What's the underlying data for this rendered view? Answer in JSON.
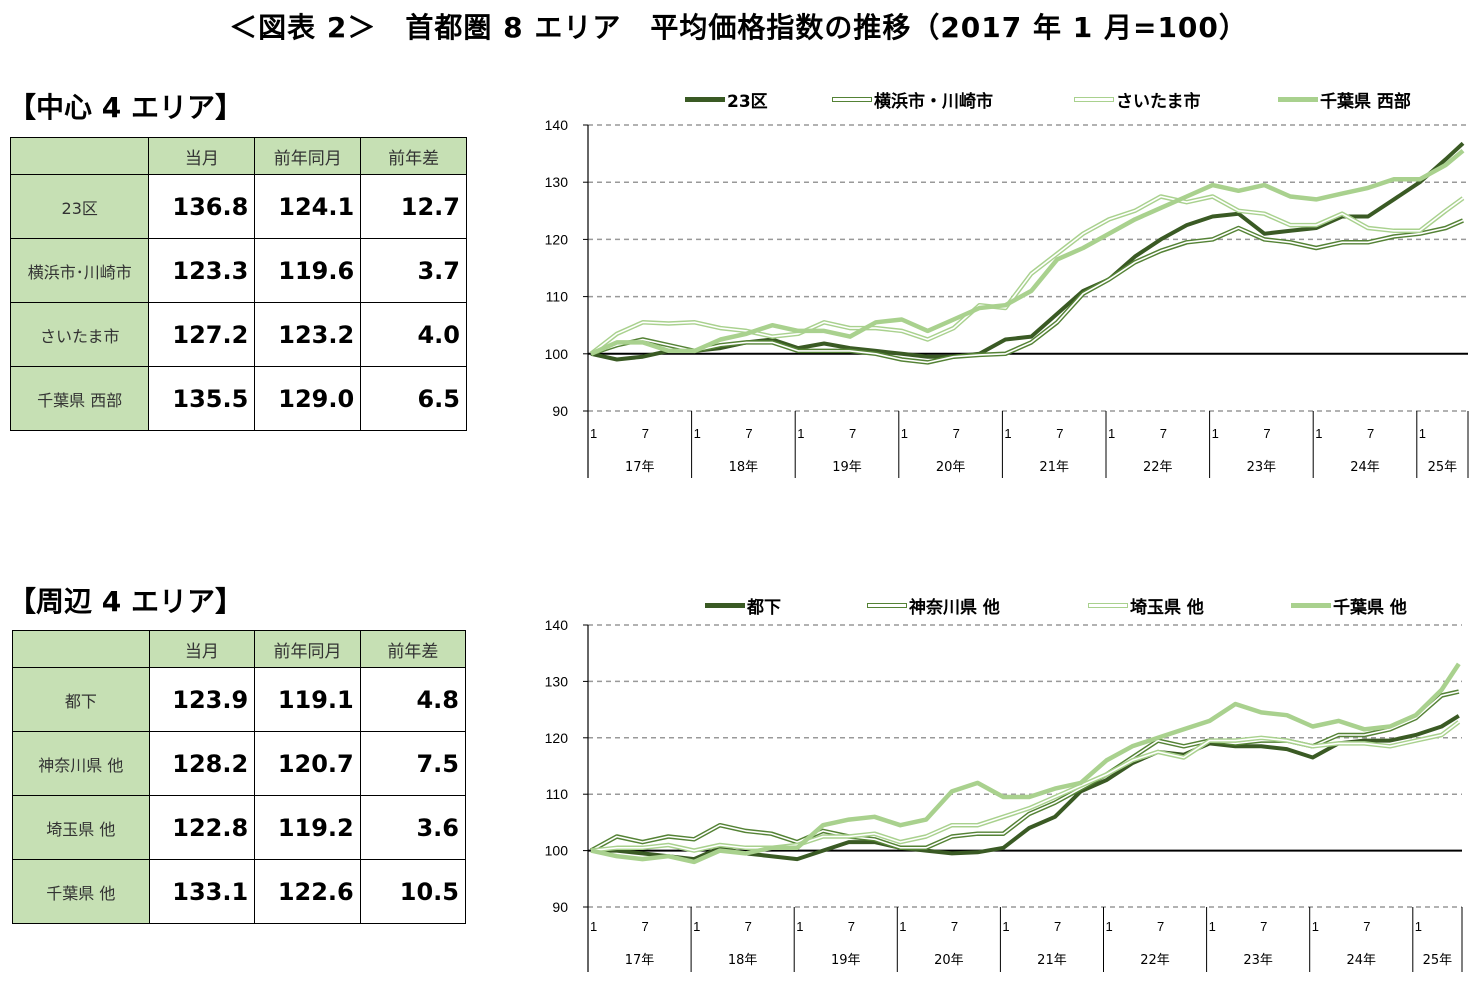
{
  "title": "＜図表 2＞　首都圏 8 エリア　平均価格指数の推移（2017 年 1 月=100）",
  "sections": [
    {
      "heading": "【中心 4 エリア】",
      "table": {
        "headers": [
          "",
          "当月",
          "前年同月",
          "前年差"
        ],
        "rows": [
          [
            "23区",
            "136.8",
            "124.1",
            "12.7"
          ],
          [
            "横浜市･川崎市",
            "123.3",
            "119.6",
            "3.7"
          ],
          [
            "さいたま市",
            "127.2",
            "123.2",
            "4.0"
          ],
          [
            "千葉県 西部",
            "135.5",
            "129.0",
            "6.5"
          ]
        ]
      }
    },
    {
      "heading": "【周辺 4 エリア】",
      "table": {
        "headers": [
          "",
          "当月",
          "前年同月",
          "前年差"
        ],
        "rows": [
          [
            "都下",
            "123.9",
            "119.1",
            "4.8"
          ],
          [
            "神奈川県 他",
            "128.2",
            "120.7",
            "7.5"
          ],
          [
            "埼玉県 他",
            "122.8",
            "119.2",
            "3.6"
          ],
          [
            "千葉県 他",
            "133.1",
            "122.6",
            "10.5"
          ]
        ]
      }
    }
  ],
  "chart_data": [
    {
      "type": "line",
      "ylim": [
        90,
        140
      ],
      "y_ticks": [
        "90",
        "100",
        "110",
        "120",
        "130",
        "140"
      ],
      "grid": "dashed horizontal",
      "reference_line": 100,
      "legend_position": "top",
      "x_month_labels": [
        "1",
        "7"
      ],
      "x_year_labels": [
        "17年",
        "18年",
        "19年",
        "20年",
        "21年",
        "22年",
        "23年",
        "24年",
        "25年"
      ],
      "x": [
        "2017-01",
        "2017-04",
        "2017-07",
        "2017-10",
        "2018-01",
        "2018-04",
        "2018-07",
        "2018-10",
        "2019-01",
        "2019-04",
        "2019-07",
        "2019-10",
        "2020-01",
        "2020-04",
        "2020-07",
        "2020-10",
        "2021-01",
        "2021-04",
        "2021-07",
        "2021-10",
        "2022-01",
        "2022-04",
        "2022-07",
        "2022-10",
        "2023-01",
        "2023-04",
        "2023-07",
        "2023-10",
        "2024-01",
        "2024-04",
        "2024-07",
        "2024-10",
        "2025-01",
        "2025-04",
        "2025-06"
      ],
      "series": [
        {
          "name": "23区",
          "color": "#3a5a24",
          "style": "solid-dark",
          "values": [
            100,
            99,
            99.5,
            100.5,
            100.5,
            101,
            102,
            102.5,
            101,
            101.8,
            101,
            100.5,
            100,
            99.5,
            99.5,
            100,
            102.5,
            103,
            107,
            111,
            113,
            117,
            120,
            122.5,
            124,
            124.5,
            121,
            121.5,
            122,
            124,
            124,
            127,
            130,
            134,
            136.8
          ]
        },
        {
          "name": "横浜市・川崎市",
          "color": "#548235",
          "style": "double",
          "values": [
            100,
            101.5,
            102.5,
            101.5,
            100.5,
            101.5,
            102,
            102,
            100.5,
            100.5,
            100.5,
            100,
            99,
            98.5,
            99.5,
            99.8,
            100,
            102,
            105.5,
            110.5,
            113,
            116,
            118,
            119.5,
            120,
            122,
            120,
            119.5,
            118.5,
            119.5,
            119.5,
            120.5,
            121,
            122,
            123.3
          ]
        },
        {
          "name": "さいたま市",
          "color": "#a9d18e",
          "style": "double",
          "values": [
            100,
            103.5,
            105.5,
            105.3,
            105.5,
            104.5,
            104,
            103,
            103.5,
            105.5,
            104.5,
            104.5,
            104,
            102.5,
            104.5,
            108.5,
            108,
            114,
            117.5,
            121,
            123.5,
            125,
            127.5,
            126.5,
            127.5,
            125,
            124.5,
            122.5,
            122.5,
            124.5,
            122,
            121.5,
            121.5,
            125,
            127.2
          ]
        },
        {
          "name": "千葉県 西部",
          "color": "#a9d18e",
          "style": "solid-light",
          "values": [
            100,
            102,
            102,
            100.5,
            100.5,
            102.5,
            103.5,
            105,
            104,
            104,
            103,
            105.5,
            106,
            104,
            106,
            108,
            108.5,
            111,
            116.5,
            118.5,
            121,
            123.5,
            125.5,
            127.5,
            129.5,
            128.5,
            129.5,
            127.5,
            127,
            128,
            129,
            130.5,
            130.5,
            133,
            135.5
          ]
        }
      ]
    },
    {
      "type": "line",
      "ylim": [
        90,
        140
      ],
      "y_ticks": [
        "90",
        "100",
        "110",
        "120",
        "130",
        "140"
      ],
      "grid": "dashed horizontal",
      "reference_line": 100,
      "legend_position": "top",
      "x_month_labels": [
        "1",
        "7"
      ],
      "x_year_labels": [
        "17年",
        "18年",
        "19年",
        "20年",
        "21年",
        "22年",
        "23年",
        "24年",
        "25年"
      ],
      "x": [
        "2017-01",
        "2017-04",
        "2017-07",
        "2017-10",
        "2018-01",
        "2018-04",
        "2018-07",
        "2018-10",
        "2019-01",
        "2019-04",
        "2019-07",
        "2019-10",
        "2020-01",
        "2020-04",
        "2020-07",
        "2020-10",
        "2021-01",
        "2021-04",
        "2021-07",
        "2021-10",
        "2022-01",
        "2022-04",
        "2022-07",
        "2022-10",
        "2023-01",
        "2023-04",
        "2023-07",
        "2023-10",
        "2024-01",
        "2024-04",
        "2024-07",
        "2024-10",
        "2025-01",
        "2025-04",
        "2025-06"
      ],
      "series": [
        {
          "name": "都下",
          "color": "#3a5a24",
          "style": "solid-dark",
          "values": [
            100,
            100,
            99.5,
            99,
            98.5,
            100.5,
            99.5,
            99,
            98.5,
            100,
            101.5,
            101.5,
            100.5,
            100,
            99.5,
            99.7,
            100.5,
            104,
            106,
            110.5,
            112.5,
            115.5,
            117.5,
            117,
            119,
            118.5,
            118.5,
            118,
            116.5,
            119,
            119.5,
            119.5,
            120.5,
            122,
            123.9
          ]
        },
        {
          "name": "神奈川県 他",
          "color": "#548235",
          "style": "double",
          "values": [
            100,
            102.5,
            101.5,
            102.5,
            102,
            104.5,
            103.5,
            103,
            101.5,
            103.5,
            102.5,
            102,
            100.5,
            100.5,
            102.5,
            103,
            103,
            106.5,
            108.5,
            111,
            113.5,
            116.5,
            119.5,
            118.5,
            119.5,
            119,
            119.5,
            119.5,
            118.5,
            120.5,
            120.5,
            121.5,
            123.5,
            127.5,
            128.2
          ]
        },
        {
          "name": "埼玉県 他",
          "color": "#a9d18e",
          "style": "double",
          "values": [
            100,
            100.5,
            100.5,
            101,
            100,
            101,
            100.5,
            100.5,
            101,
            102.5,
            102.5,
            103,
            101.5,
            102.5,
            104.5,
            104.5,
            106,
            107.5,
            109.5,
            111.5,
            113.5,
            116,
            117.5,
            116.5,
            119.5,
            119.5,
            120,
            119.5,
            118.5,
            119,
            119,
            118.5,
            119.5,
            120.5,
            122.8
          ]
        },
        {
          "name": "千葉県 他",
          "color": "#a9d18e",
          "style": "solid-light",
          "values": [
            100,
            99,
            98.5,
            99,
            98,
            100,
            99.5,
            100.5,
            100.5,
            104.5,
            105.5,
            106,
            104.5,
            105.5,
            110.5,
            112,
            109.5,
            109.5,
            111,
            112,
            116,
            118.5,
            120,
            121.5,
            123,
            126,
            124.5,
            124,
            122,
            123,
            121.5,
            122,
            124,
            128.5,
            133.1
          ]
        }
      ]
    }
  ]
}
